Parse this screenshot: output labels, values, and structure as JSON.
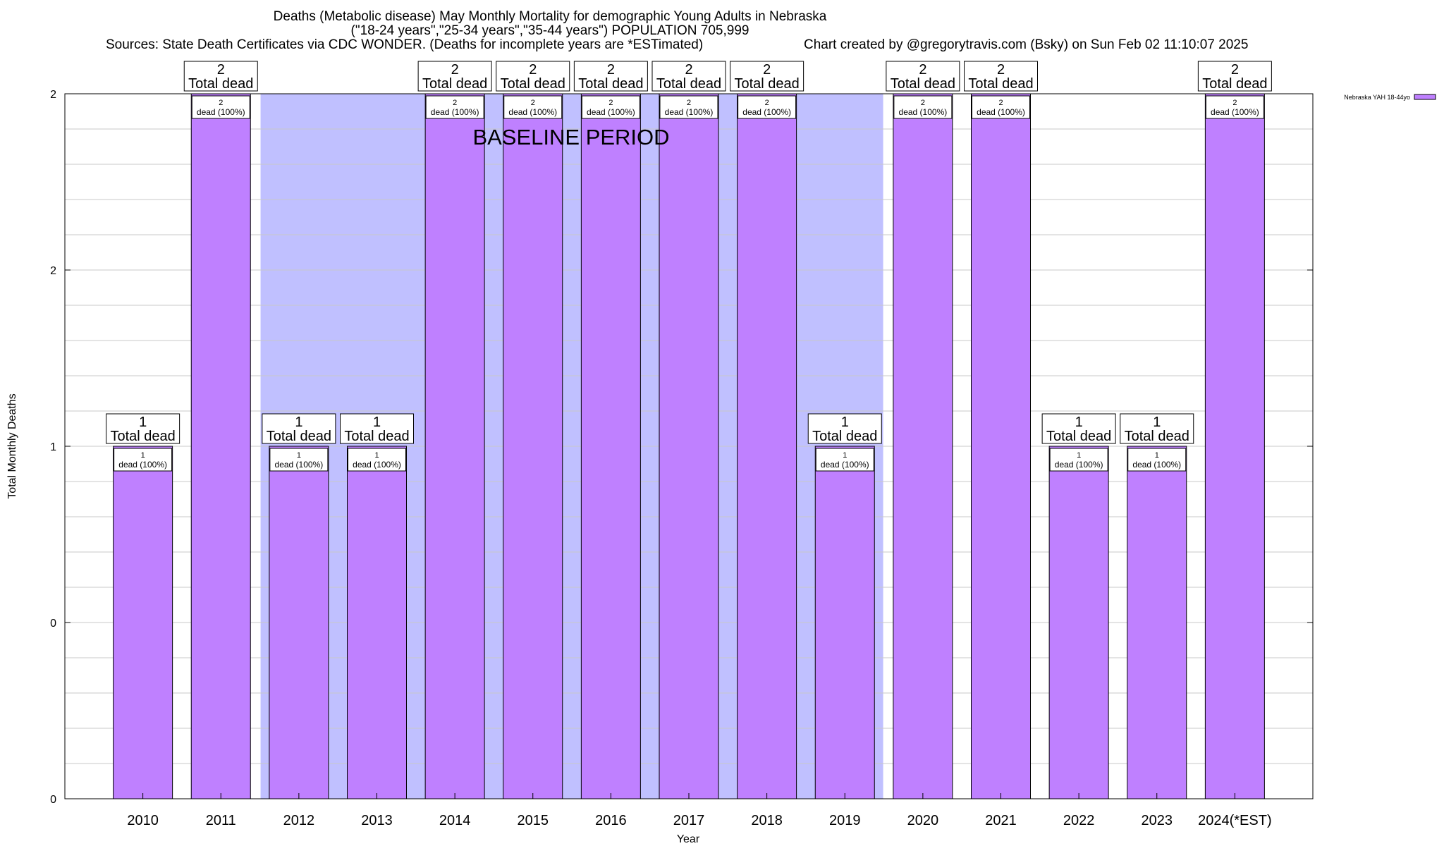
{
  "header": {
    "title_line1": "Deaths (Metabolic disease) May Monthly Mortality for demographic Young Adults in Nebraska",
    "title_line2": "(\"18-24 years\",\"25-34 years\",\"35-44 years\") POPULATION 705,999",
    "sources": "Sources: State Death Certificates via CDC WONDER. (Deaths for incomplete years are *ESTimated)",
    "credit": "Chart created by @gregorytravis.com (Bsky) on Sun Feb 02 11:10:07 2025"
  },
  "chart_data": {
    "type": "bar",
    "title": "Deaths (Metabolic disease) May Monthly Mortality for demographic Young Adults in Nebraska",
    "xlabel": "Year",
    "ylabel": "Total Monthly Deaths",
    "categories": [
      "2010",
      "2011",
      "2012",
      "2013",
      "2014",
      "2015",
      "2016",
      "2017",
      "2018",
      "2019",
      "2020",
      "2021",
      "2022",
      "2023",
      "2024(*EST)"
    ],
    "series": [
      {
        "name": "Nebraska YAH 18-44yo",
        "values": [
          1,
          2,
          1,
          1,
          2,
          2,
          2,
          2,
          2,
          1,
          2,
          2,
          1,
          1,
          2
        ],
        "color": "#bf80ff"
      }
    ],
    "total_labels": [
      "1",
      "2",
      "1",
      "1",
      "2",
      "2",
      "2",
      "2",
      "2",
      "1",
      "2",
      "2",
      "1",
      "1",
      "2"
    ],
    "total_suffix": "Total dead",
    "inner_labels": [
      "1",
      "2",
      "1",
      "1",
      "2",
      "2",
      "2",
      "2",
      "2",
      "1",
      "2",
      "2",
      "1",
      "1",
      "2"
    ],
    "inner_suffix": "dead (100%)",
    "ylim": [
      0,
      2
    ],
    "ytick_labels": [
      "0",
      "0",
      "1",
      "2",
      "2"
    ],
    "baseline_label": "BASELINE PERIOD",
    "baseline_range": [
      "2012",
      "2019"
    ],
    "baseline_color": "#c0c0ff",
    "grid": true,
    "legend_position": "top-right"
  }
}
